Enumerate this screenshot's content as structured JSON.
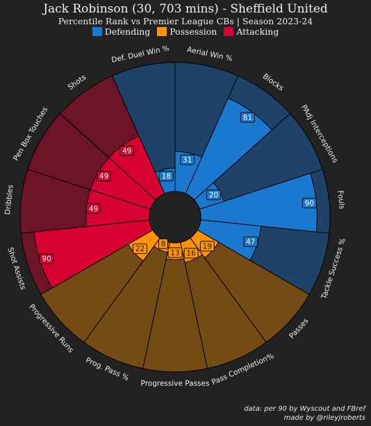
{
  "header": {
    "title": "Jack Robinson (30, 703 mins) - Sheffield United",
    "subtitle": "Percentile Rank vs Premier League CBs | Season 2023-24"
  },
  "legend": [
    {
      "label": "Defending",
      "color": "#1a78cf"
    },
    {
      "label": "Possession",
      "color": "#ff9300"
    },
    {
      "label": "Attacking",
      "color": "#d70232"
    }
  ],
  "footer": {
    "credit_line1": "data: per 90 by Wyscout and FBref",
    "credit_line2": "made by @rileyjroberts"
  },
  "colors": {
    "background": "#222222",
    "defending": "#1a78cf",
    "defending_bg": "#1e4268",
    "possession": "#ff9300",
    "possession_bg": "#744b14",
    "attacking": "#d70232",
    "attacking_bg": "#6c1428"
  },
  "chart_data": {
    "type": "polar-bar",
    "rmax": 100,
    "categories": [
      "Def. Duel Win %",
      "Aerial Win %",
      "Blocks",
      "PAdj Interceptions",
      "Fouls",
      "Tackle Success %",
      "Passes",
      "Pass Completion%",
      "Progressive Passes",
      "Prog. Pass %",
      "Progressive Runs",
      "Shot Assists",
      "Dribbles",
      "Pen Box Touches",
      "Shots"
    ],
    "groups": [
      "Defending",
      "Defending",
      "Defending",
      "Defending",
      "Defending",
      "Defending",
      "Possession",
      "Possession",
      "Possession",
      "Possession",
      "Possession",
      "Attacking",
      "Attacking",
      "Attacking",
      "Attacking"
    ],
    "values": [
      18,
      31,
      81,
      20,
      90,
      47,
      19,
      16,
      13,
      8,
      22,
      90,
      49,
      49,
      49
    ]
  }
}
